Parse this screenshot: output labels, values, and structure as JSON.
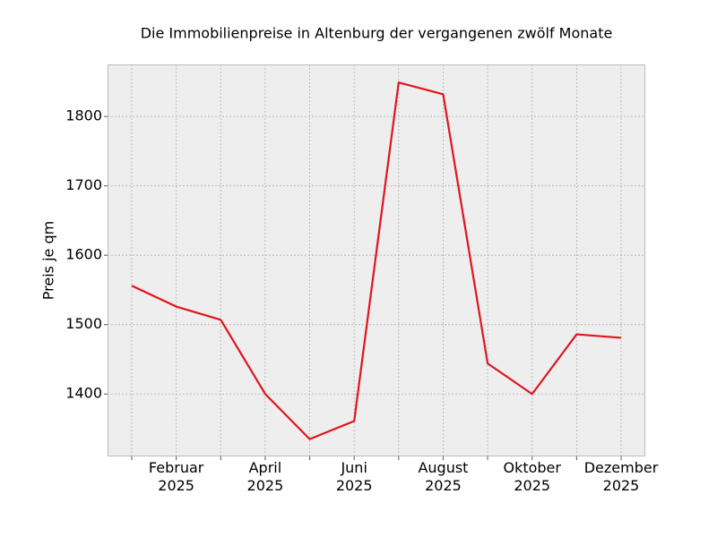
{
  "chart_data": {
    "type": "line",
    "title": "Die Immobilienpreise in Altenburg der vergangenen zwölf Monate",
    "y_label": "Preis je qm",
    "categories": [
      null,
      "Februar\n2025",
      null,
      "April\n2025",
      null,
      "Juni\n2025",
      null,
      "August\n2025",
      null,
      "Oktober\n2025",
      null,
      "Dezember\n2025"
    ],
    "values": [
      1556,
      1526,
      1507,
      1400,
      1335,
      1361,
      1849,
      1832,
      1444,
      1400,
      1486,
      1481
    ],
    "color": "#e0141e",
    "ylim": [
      1310,
      1875
    ],
    "yticks": [
      1400,
      1500,
      1600,
      1700,
      1800
    ],
    "grid": true
  }
}
